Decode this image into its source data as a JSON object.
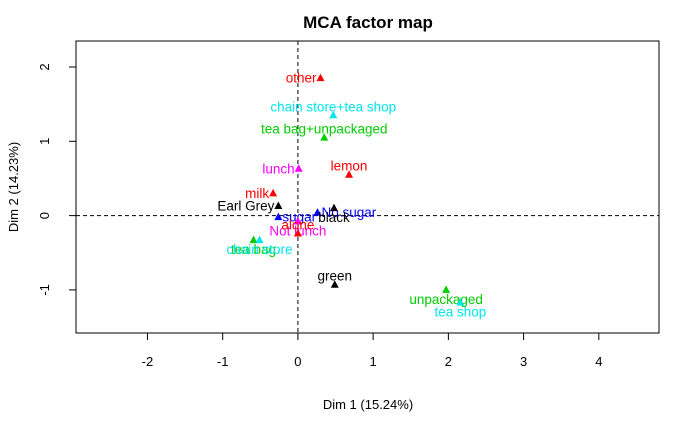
{
  "chart_data": {
    "type": "scatter",
    "title": "MCA factor map",
    "xlabel": "Dim 1 (15.24%)",
    "ylabel": "Dim 2 (14.23%)",
    "xlim": [
      -2.95,
      4.8
    ],
    "ylim": [
      -1.58,
      2.35
    ],
    "xticks": [
      -2,
      -1,
      0,
      1,
      2,
      3,
      4
    ],
    "yticks": [
      -1,
      0,
      1,
      2
    ],
    "reference_lines": {
      "x": 0,
      "y": 0,
      "style": "dashed"
    },
    "marker": "triangle",
    "colors": {
      "red": "#ff0000",
      "cyan": "#00e5ee",
      "green": "#00cd00",
      "magenta": "#ff00ff",
      "black": "#000000",
      "blue": "#0000ff"
    },
    "points": [
      {
        "label": "other",
        "x": 0.3,
        "y": 1.85,
        "color": "red",
        "label_pos": "left"
      },
      {
        "label": "chain store+tea shop",
        "x": 0.47,
        "y": 1.35,
        "color": "cyan",
        "label_pos": "top"
      },
      {
        "label": "tea bag+unpackaged",
        "x": 0.35,
        "y": 1.05,
        "color": "green",
        "label_pos": "top"
      },
      {
        "label": "lunch",
        "x": 0.01,
        "y": 0.63,
        "color": "magenta",
        "label_pos": "left"
      },
      {
        "label": "lemon",
        "x": 0.68,
        "y": 0.55,
        "color": "red",
        "label_pos": "top"
      },
      {
        "label": "milk",
        "x": -0.33,
        "y": 0.3,
        "color": "red",
        "label_pos": "left"
      },
      {
        "label": "Earl Grey",
        "x": -0.26,
        "y": 0.13,
        "color": "black",
        "label_pos": "left"
      },
      {
        "label": "No sugar",
        "x": 0.26,
        "y": 0.04,
        "color": "blue",
        "label_pos": "right"
      },
      {
        "label": "black",
        "x": 0.48,
        "y": 0.1,
        "color": "black",
        "label_pos": "bottom"
      },
      {
        "label": "sugar",
        "x": -0.26,
        "y": -0.02,
        "color": "blue",
        "label_pos": "right"
      },
      {
        "label": "Not lunch",
        "x": 0.0,
        "y": -0.08,
        "color": "magenta",
        "label_pos": "bottom"
      },
      {
        "label": "alone",
        "x": 0.0,
        "y": -0.24,
        "color": "red",
        "label_pos": "top"
      },
      {
        "label": "tea bag",
        "x": -0.59,
        "y": -0.33,
        "color": "green",
        "label_pos": "bottom"
      },
      {
        "label": "chain store",
        "x": -0.51,
        "y": -0.33,
        "color": "cyan",
        "label_pos": "bottom"
      },
      {
        "label": "green",
        "x": 0.49,
        "y": -0.93,
        "color": "black",
        "label_pos": "top"
      },
      {
        "label": "unpackaged",
        "x": 1.97,
        "y": -1.0,
        "color": "green",
        "label_pos": "bottom"
      },
      {
        "label": "tea shop",
        "x": 2.16,
        "y": -1.17,
        "color": "cyan",
        "label_pos": "bottom"
      }
    ]
  }
}
